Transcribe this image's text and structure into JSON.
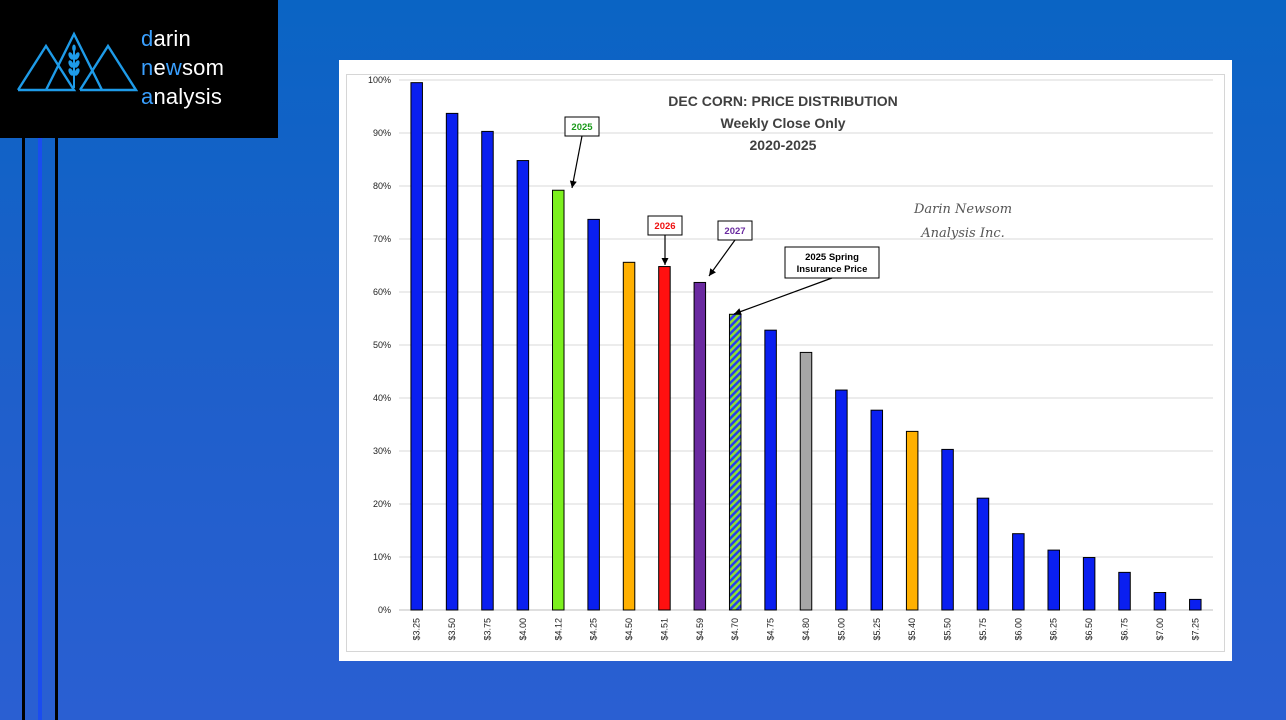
{
  "brand": {
    "line1_accent": "d",
    "line1_rest": "arin",
    "line2_accent": "n",
    "line2_mid": "e",
    "line2_accent2": "w",
    "line2_rest": "som",
    "line3_accent": "a",
    "line3_rest": "nalysis",
    "accent_color": "#3aa0ff",
    "icon": "mountain-wheat-logo-icon"
  },
  "chart_data": {
    "type": "bar",
    "title": "DEC CORN: PRICE DISTRIBUTION",
    "subtitle": "Weekly Close Only",
    "subtitle2": "2020-2025",
    "watermark_line1": "Darin Newsom",
    "watermark_line2": "Analysis Inc.",
    "xlabel": "",
    "ylabel": "",
    "ylim": [
      0,
      100
    ],
    "y_ticks": [
      "0%",
      "10%",
      "20%",
      "30%",
      "40%",
      "50%",
      "60%",
      "70%",
      "80%",
      "90%",
      "100%"
    ],
    "grid": true,
    "legend": "none",
    "categories": [
      "$3.25",
      "$3.50",
      "$3.75",
      "$4.00",
      "$4.12",
      "$4.25",
      "$4.50",
      "$4.51",
      "$4.59",
      "$4.70",
      "$4.75",
      "$4.80",
      "$5.00",
      "$5.25",
      "$5.40",
      "$5.50",
      "$5.75",
      "$6.00",
      "$6.25",
      "$6.50",
      "$6.75",
      "$7.00",
      "$7.25"
    ],
    "values": [
      99.5,
      93.7,
      90.3,
      84.8,
      79.2,
      73.7,
      65.6,
      64.8,
      61.8,
      55.8,
      52.8,
      48.6,
      41.5,
      37.7,
      33.7,
      30.3,
      21.1,
      14.4,
      11.3,
      9.9,
      7.1,
      3.3,
      2.0
    ],
    "bar_colors": [
      "#0a1ff0",
      "#0a1ff0",
      "#0a1ff0",
      "#0a1ff0",
      "#7cf01e",
      "#0a1ff0",
      "#ffb000",
      "#ff1010",
      "#6a2aa0",
      "hatch",
      "#0a1ff0",
      "#a6a6a6",
      "#0a1ff0",
      "#0a1ff0",
      "#ffb000",
      "#0a1ff0",
      "#0a1ff0",
      "#0a1ff0",
      "#0a1ff0",
      "#0a1ff0",
      "#0a1ff0",
      "#0a1ff0",
      "#0a1ff0"
    ],
    "annotations": [
      {
        "lines": [
          "2025"
        ],
        "color": "#1a9a1a",
        "target": 4
      },
      {
        "lines": [
          "2026"
        ],
        "color": "#ee1010",
        "target": 7
      },
      {
        "lines": [
          "2027"
        ],
        "color": "#6a2aa0",
        "target": 8
      },
      {
        "lines": [
          "2025 Spring",
          "Insurance Price"
        ],
        "color": "#000000",
        "target": 9
      }
    ]
  }
}
